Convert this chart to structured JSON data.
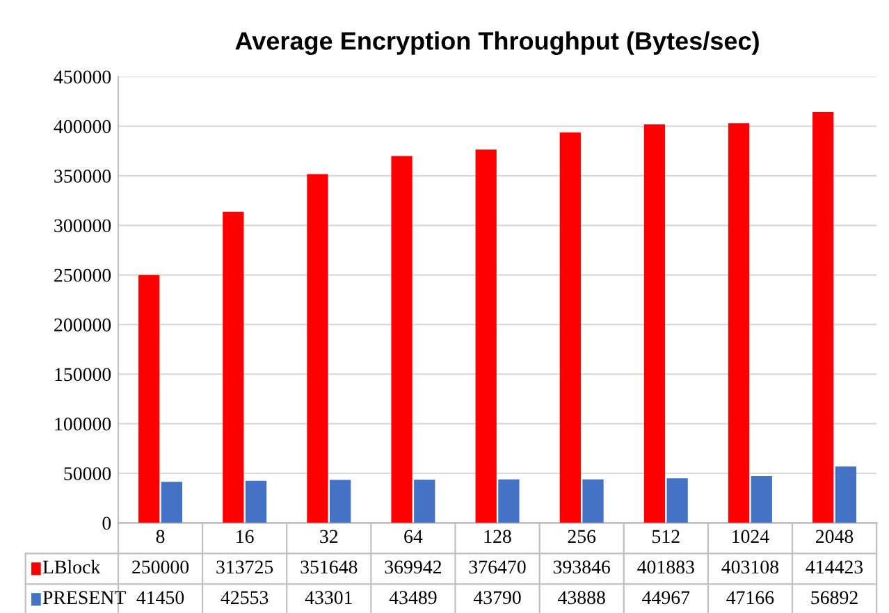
{
  "chart_data": {
    "type": "bar",
    "title": "Average Encryption Throughput (Bytes/sec)",
    "categories": [
      "8",
      "16",
      "32",
      "64",
      "128",
      "256",
      "512",
      "1024",
      "2048"
    ],
    "series": [
      {
        "name": "LBlock",
        "color": "#ff0000",
        "values": [
          250000,
          313725,
          351648,
          369942,
          376470,
          393846,
          401883,
          403108,
          414423
        ]
      },
      {
        "name": "PRESENT",
        "color": "#4472c4",
        "values": [
          41450,
          42553,
          43301,
          43489,
          43790,
          43888,
          44967,
          47166,
          56892
        ]
      }
    ],
    "ylim": [
      0,
      450000
    ],
    "yticks": [
      0,
      50000,
      100000,
      150000,
      200000,
      250000,
      300000,
      350000,
      400000,
      450000
    ],
    "grid": "y",
    "legend": "bottom",
    "data_labels": true
  }
}
